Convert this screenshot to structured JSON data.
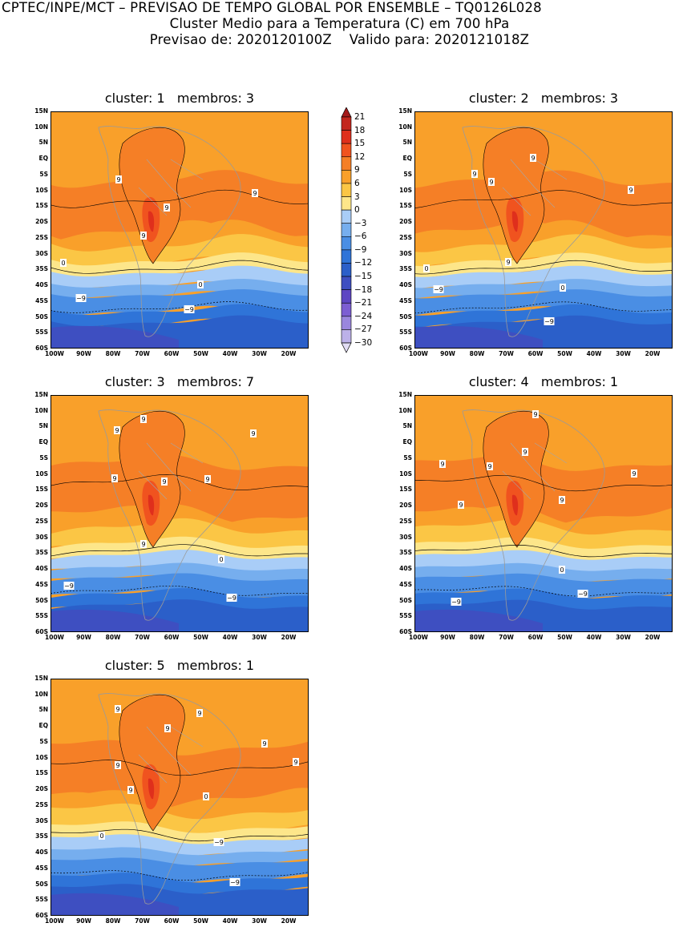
{
  "header": {
    "line1": "CPTEC/INPE/MCT – PREVISAO DE TEMPO GLOBAL POR ENSEMBLE – TQ0126L028",
    "line2": "Cluster Medio para a Temperatura (C) em 700 hPa",
    "line3": "Previsao de: 2020120100Z    Valido para: 2020121018Z"
  },
  "panels": [
    {
      "title": "cluster: 1   membros: 3"
    },
    {
      "title": "cluster: 2   membros: 3"
    },
    {
      "title": "cluster: 3   membros: 7"
    },
    {
      "title": "cluster: 4   membros: 1"
    },
    {
      "title": "cluster: 5   membros: 1"
    }
  ],
  "axes": {
    "lat_labels": [
      "15N",
      "10N",
      "5N",
      "EQ",
      "5S",
      "10S",
      "15S",
      "20S",
      "25S",
      "30S",
      "35S",
      "40S",
      "45S",
      "50S",
      "55S",
      "60S"
    ],
    "lon_labels": [
      "100W",
      "90W",
      "80W",
      "70W",
      "60W",
      "50W",
      "40W",
      "30W",
      "20W"
    ]
  },
  "colorbar": {
    "labels": [
      "21",
      "18",
      "15",
      "12",
      "9",
      "6",
      "3",
      "0",
      "−3",
      "−6",
      "−9",
      "−12",
      "−15",
      "−18",
      "−21",
      "−24",
      "−27",
      "−30"
    ],
    "colors": {
      "gt21": "#a51b1b",
      "18_21": "#c3271e",
      "15_18": "#df2f1c",
      "12_15": "#f0531f",
      "9_12": "#f57f26",
      "6_9": "#f9a02a",
      "3_6": "#fbc645",
      "0_3": "#fde68a",
      "m3_0": "#a9cdf7",
      "m6_m3": "#76aeee",
      "m9_m6": "#4a8ee4",
      "m12_m9": "#2f74d8",
      "m15_m12": "#2b5fc9",
      "m18_m15": "#3e4fc1",
      "m21_m18": "#5e47c3",
      "m24_m21": "#7c5ed2",
      "m27_m24": "#9a86dd",
      "m30_m27": "#bcb1e9",
      "lt_m30": "#e1dcf4"
    }
  },
  "contour_labels": {
    "p1": [
      "9",
      "9",
      "9",
      "9",
      "0",
      "0",
      "−9",
      "−9"
    ],
    "p2": [
      "9",
      "9",
      "9",
      "9",
      "9",
      "0",
      "0",
      "−9",
      "−9"
    ],
    "p3": [
      "9",
      "9",
      "9",
      "9",
      "9",
      "9",
      "9",
      "0",
      "−9",
      "−9"
    ],
    "p4": [
      "9",
      "9",
      "9",
      "9",
      "9",
      "9",
      "9",
      "0",
      "−9",
      "−9"
    ],
    "p5": [
      "9",
      "9",
      "9",
      "9",
      "9",
      "9",
      "9",
      "0",
      "0",
      "−9",
      "−9"
    ]
  }
}
